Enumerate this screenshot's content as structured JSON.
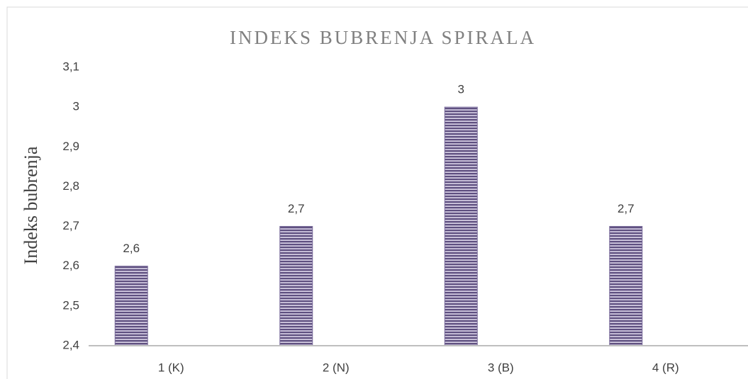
{
  "chart_data": {
    "type": "bar",
    "title": "INDEKS BUBRENJA SPIRALA",
    "y_label": "Indeks bubrenja",
    "categories": [
      "1 (K)",
      "2 (N)",
      "3 (B)",
      "4 (R)"
    ],
    "values": [
      2.6,
      2.7,
      3,
      2.7
    ],
    "value_labels": [
      "2,6",
      "2,7",
      "3",
      "2,7"
    ],
    "color": "#7a6c9c",
    "ylim": [
      2.4,
      3.1
    ],
    "yticks": [
      {
        "value": 2.4,
        "label": "2,4"
      },
      {
        "value": 2.5,
        "label": "2,5"
      },
      {
        "value": 2.6,
        "label": "2,6"
      },
      {
        "value": 2.7,
        "label": "2,7"
      },
      {
        "value": 2.8,
        "label": "2,8"
      },
      {
        "value": 2.9,
        "label": "2,9"
      },
      3,
      {
        "value": 3.1,
        "label": "3,1"
      }
    ],
    "grid": false
  }
}
